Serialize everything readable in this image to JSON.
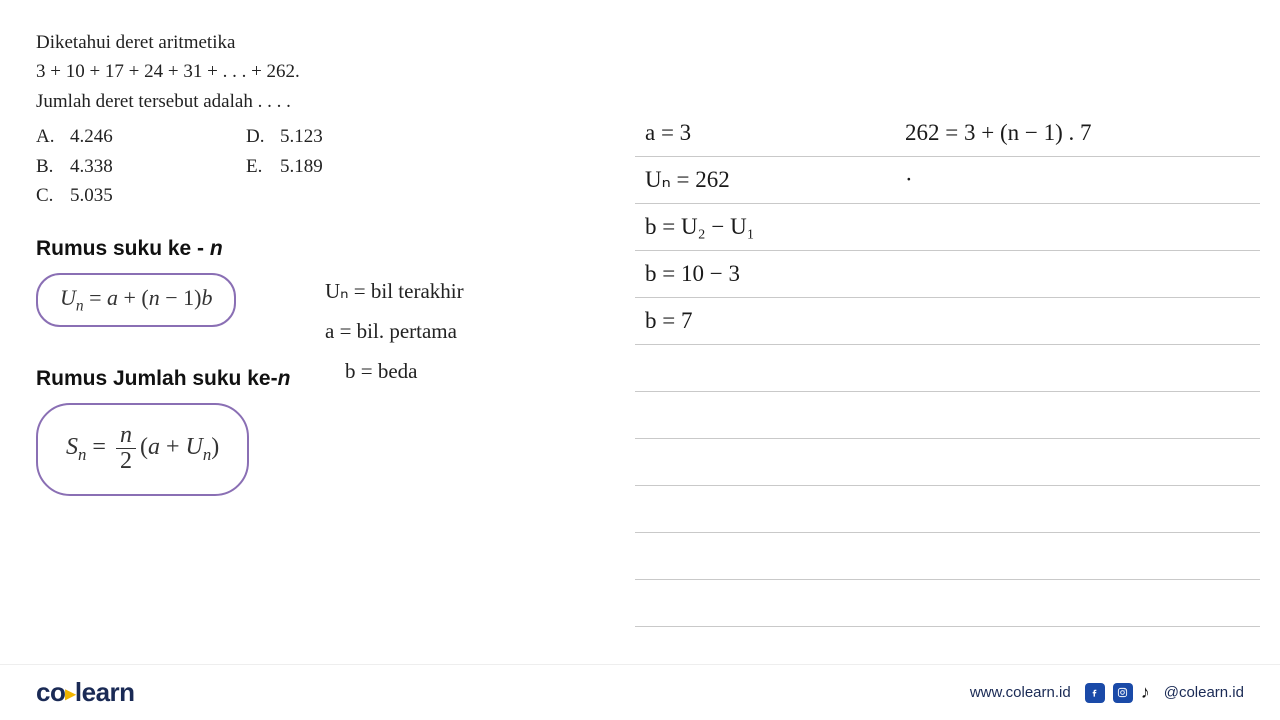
{
  "problem": {
    "line1": "Diketahui deret aritmetika",
    "line2": "3 + 10 + 17 + 24 + 31 + . . . + 262.",
    "line3": "Jumlah deret tersebut adalah . . . .",
    "options": {
      "A": "4.246",
      "B": "4.338",
      "C": "5.035",
      "D": "5.123",
      "E": "5.189"
    }
  },
  "headings": {
    "suku_n_pre": "Rumus suku ke - ",
    "suku_n_var": "n",
    "jumlah_pre": "Rumus Jumlah suku ke-",
    "jumlah_var": "n"
  },
  "formulas": {
    "un_html": "<span class='ital'>U</span><span class='sub'>n</span> = <span class='ital'>a</span> + (<span class='ital'>n</span> − 1)<span class='ital'>b</span>",
    "sn_html": "<span class='ital'>S</span><span class='sub'>n</span> = <span class='frac'><span class='top ital'>n</span><span class='bot'>2</span></span>(<span class='ital'>a</span> + <span class='ital'>U</span><span class='sub'>n</span>)"
  },
  "hand_left": {
    "l1": "Uₙ = bil terakhir",
    "l2": "a = bil. pertama",
    "l3": "b = beda"
  },
  "notebook": {
    "lines": [
      {
        "c1": "a = 3",
        "c2": "262 = 3 + (n − 1) . 7"
      },
      {
        "c1": "Uₙ = 262",
        "c2": "·"
      },
      {
        "c1": "b = U₂ − U₁",
        "c2": ""
      },
      {
        "c1": "b = 10 − 3",
        "c2": ""
      },
      {
        "c1": "b = 7",
        "c2": ""
      },
      {
        "c1": "",
        "c2": ""
      },
      {
        "c1": "",
        "c2": ""
      },
      {
        "c1": "",
        "c2": ""
      },
      {
        "c1": "",
        "c2": ""
      },
      {
        "c1": "",
        "c2": ""
      },
      {
        "c1": "",
        "c2": ""
      }
    ]
  },
  "footer": {
    "logo_a": "co",
    "logo_b": "learn",
    "url": "www.colearn.id",
    "handle": "@colearn.id"
  },
  "colors": {
    "pill_border": "#8a6fb4",
    "notebook_line": "#c9c9c9",
    "brand_dark": "#1a2a55",
    "brand_accent": "#f0b400",
    "social_blue": "#1a4aa8"
  }
}
